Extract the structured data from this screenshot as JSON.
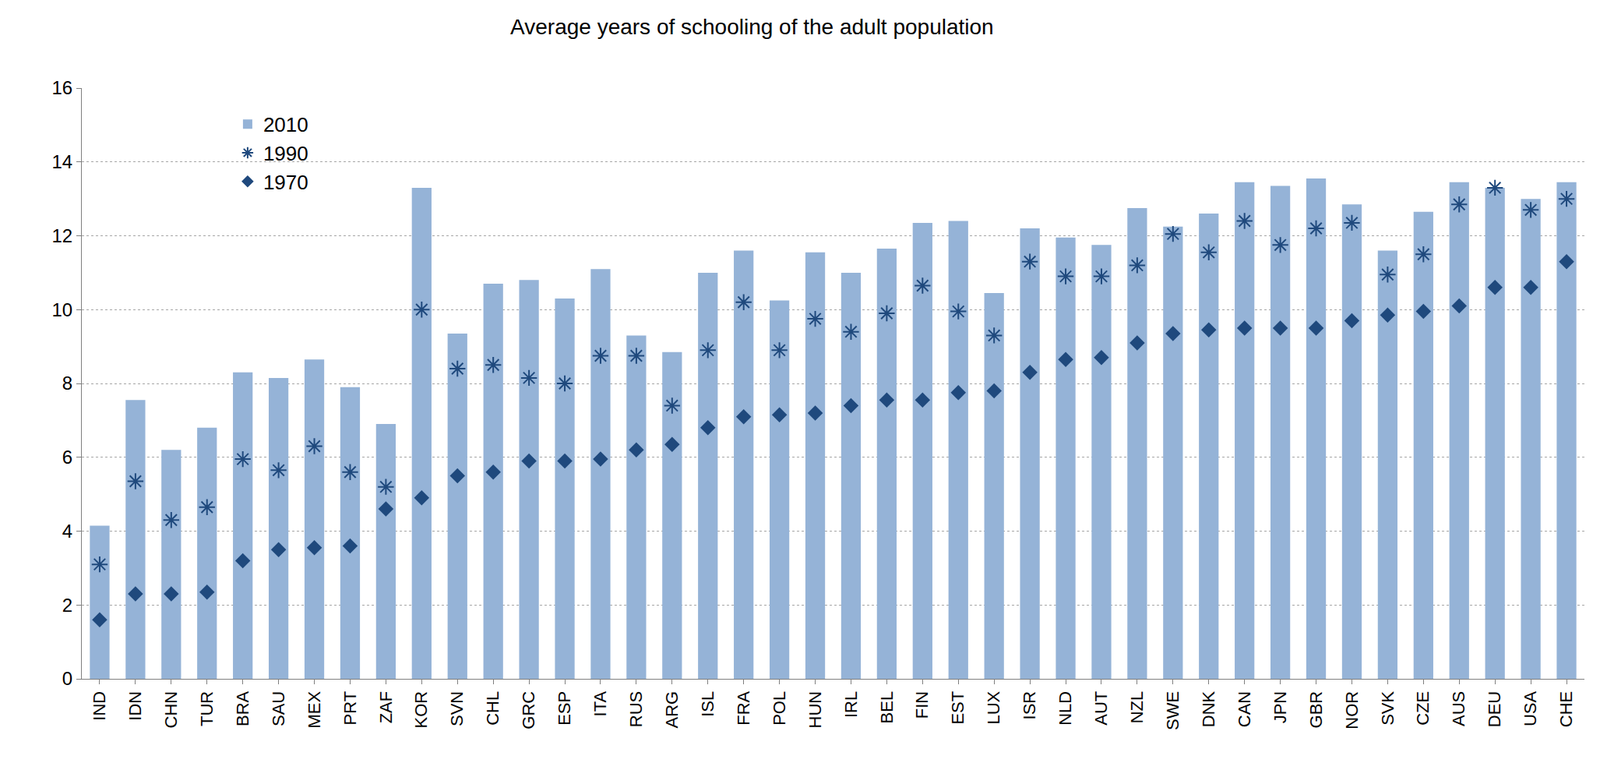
{
  "chart_data": {
    "type": "bar",
    "title": "Average years of schooling of the adult population",
    "categories": [
      "IND",
      "IDN",
      "CHN",
      "TUR",
      "BRA",
      "SAU",
      "MEX",
      "PRT",
      "ZAF",
      "KOR",
      "SVN",
      "CHL",
      "GRC",
      "ESP",
      "ITA",
      "RUS",
      "ARG",
      "ISL",
      "FRA",
      "POL",
      "HUN",
      "IRL",
      "BEL",
      "FIN",
      "EST",
      "LUX",
      "ISR",
      "NLD",
      "AUT",
      "NZL",
      "SWE",
      "DNK",
      "CAN",
      "JPN",
      "GBR",
      "NOR",
      "SVK",
      "CZE",
      "AUS",
      "DEU",
      "USA",
      "CHE"
    ],
    "series": [
      {
        "name": "2010",
        "type": "bar",
        "color": "#95b3d7",
        "values": [
          4.15,
          7.55,
          6.2,
          6.8,
          8.3,
          8.15,
          8.65,
          7.9,
          6.9,
          13.3,
          9.35,
          10.7,
          10.8,
          10.3,
          11.1,
          9.3,
          8.85,
          11.0,
          11.6,
          10.25,
          11.55,
          11.0,
          11.65,
          12.35,
          12.4,
          10.45,
          12.2,
          11.95,
          11.75,
          12.75,
          12.25,
          12.6,
          13.45,
          13.35,
          13.55,
          12.85,
          11.6,
          12.65,
          13.45,
          13.3,
          13.0,
          13.45
        ]
      },
      {
        "name": "1990",
        "type": "scatter",
        "marker": "asterisk",
        "color": "#1f497d",
        "values": [
          3.1,
          5.35,
          4.3,
          4.65,
          5.95,
          5.65,
          6.3,
          5.6,
          5.2,
          10.0,
          8.4,
          8.5,
          8.15,
          8.0,
          8.75,
          8.75,
          7.4,
          8.9,
          10.2,
          8.9,
          9.75,
          9.4,
          9.9,
          10.65,
          9.95,
          9.3,
          11.3,
          10.9,
          10.9,
          11.2,
          12.05,
          11.55,
          12.4,
          11.75,
          12.2,
          12.35,
          10.95,
          11.5,
          12.85,
          13.3,
          12.7,
          13.0
        ]
      },
      {
        "name": "1970",
        "type": "scatter",
        "marker": "diamond",
        "color": "#1f497d",
        "values": [
          1.6,
          2.3,
          2.3,
          2.35,
          3.2,
          3.5,
          3.55,
          3.6,
          4.6,
          4.9,
          5.5,
          5.6,
          5.9,
          5.9,
          5.95,
          6.2,
          6.35,
          6.8,
          7.1,
          7.15,
          7.2,
          7.4,
          7.55,
          7.55,
          7.75,
          7.8,
          8.3,
          8.65,
          8.7,
          9.1,
          9.35,
          9.45,
          9.5,
          9.5,
          9.5,
          9.7,
          9.85,
          9.95,
          10.1,
          10.6,
          10.6,
          11.3
        ]
      }
    ],
    "ylim": [
      0,
      16
    ],
    "yticks": [
      0,
      2,
      4,
      6,
      8,
      10,
      12,
      14,
      16
    ],
    "grid": true,
    "legend": "upper left"
  }
}
